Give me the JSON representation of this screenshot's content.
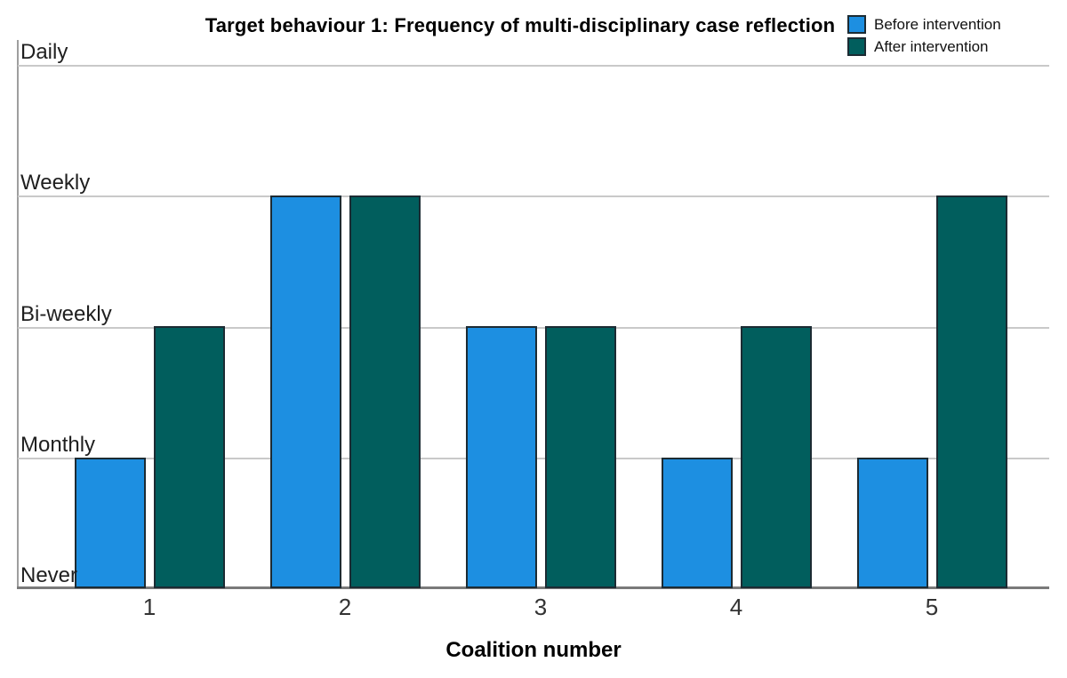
{
  "chart_data": {
    "type": "bar",
    "title": "Target behaviour 1: Frequency of multi-disciplinary case reflection",
    "xlabel": "Coalition number",
    "ylabel": "",
    "categories": [
      "1",
      "2",
      "3",
      "4",
      "5"
    ],
    "y_tick_labels": [
      "Never",
      "Monthly",
      "Bi-weekly",
      "Weekly",
      "Daily"
    ],
    "y_scale": {
      "Never": 0,
      "Monthly": 1,
      "Bi-weekly": 2,
      "Weekly": 3,
      "Daily": 4
    },
    "ylim": [
      0,
      4
    ],
    "grid": true,
    "legend_position": "top-right",
    "series": [
      {
        "name": "Before intervention",
        "color": "#1d8fe1",
        "values": [
          1,
          3,
          2,
          1,
          1
        ],
        "values_as_labels": [
          "Monthly",
          "Weekly",
          "Bi-weekly",
          "Monthly",
          "Monthly"
        ]
      },
      {
        "name": "After intervention",
        "color": "#015e5d",
        "values": [
          2,
          3,
          2,
          2,
          3
        ],
        "values_as_labels": [
          "Bi-weekly",
          "Weekly",
          "Bi-weekly",
          "Bi-weekly",
          "Weekly"
        ]
      }
    ],
    "style": {
      "bar_border": "#1c2b33",
      "gridline": "#c9c9c9",
      "y_axis_line": "#9e9e9e",
      "x_axis_line": "#7a7a7a"
    }
  }
}
